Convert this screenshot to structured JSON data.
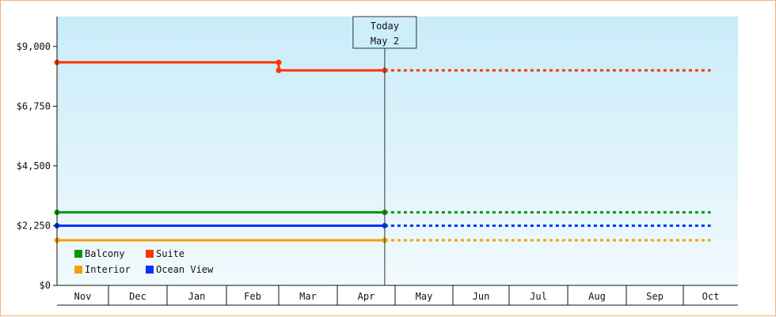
{
  "chart_data": {
    "type": "line",
    "step": true,
    "title": "",
    "xlabel": "",
    "ylabel": "",
    "categories": [
      "Nov",
      "Dec",
      "Jan",
      "Feb",
      "Mar",
      "Apr",
      "May",
      "Jun",
      "Jul",
      "Aug",
      "Sep",
      "Oct"
    ],
    "ylim": [
      0,
      10125
    ],
    "yticks": [
      0,
      2250,
      4500,
      6750,
      9000
    ],
    "ytick_labels": [
      "$0",
      "$2,250",
      "$4,500",
      "$6,750",
      "$9,000"
    ],
    "grid": false,
    "background": "light blue gradient",
    "today_marker": {
      "line1": "Today",
      "line2": "May 2",
      "x": 5.82
    },
    "legend": {
      "placement": "bottom-left",
      "entries": [
        "Balcony",
        "Suite",
        "Interior",
        "Ocean View"
      ]
    },
    "series": [
      {
        "name": "Suite",
        "color": "#ff3300",
        "points": [
          {
            "x": 0,
            "y": 8400
          },
          {
            "x": 4.0,
            "y": 8400
          },
          {
            "x": 4.0,
            "y": 8100
          },
          {
            "x": 5.82,
            "y": 8100
          }
        ],
        "forecast_end_x": 11.5
      },
      {
        "name": "Balcony",
        "color": "#009900",
        "points": [
          {
            "x": 0,
            "y": 2750
          },
          {
            "x": 5.82,
            "y": 2750
          }
        ],
        "forecast_end_x": 11.5
      },
      {
        "name": "Ocean View",
        "color": "#0033ff",
        "points": [
          {
            "x": 0,
            "y": 2250
          },
          {
            "x": 5.82,
            "y": 2250
          }
        ],
        "forecast_end_x": 11.5
      },
      {
        "name": "Interior",
        "color": "#f5a000",
        "points": [
          {
            "x": 0,
            "y": 1700
          },
          {
            "x": 5.82,
            "y": 1700
          }
        ],
        "forecast_end_x": 11.5
      }
    ]
  }
}
